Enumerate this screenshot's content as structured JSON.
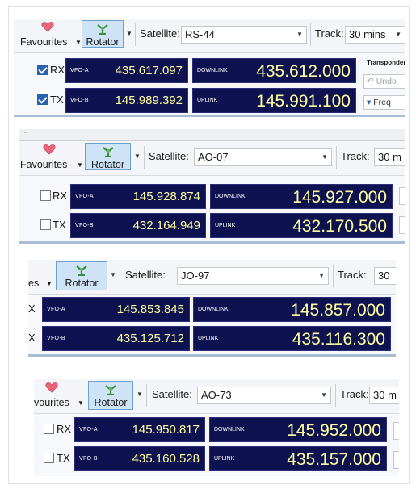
{
  "colors": {
    "display_bg": "#0f1250",
    "display_text": "#ffff9e",
    "rotator_bg": "#cfe3f7",
    "rail": "#a8bcd6"
  },
  "panels": [
    {
      "favourites_label": "Favourites",
      "rotator_label": "Rotator",
      "satellite_label": "Satellite:",
      "satellite_value": "RS-44",
      "track_label": "Track:",
      "track_value": "30 mins",
      "rx_label": "RX",
      "tx_label": "TX",
      "rx_checked": true,
      "tx_checked": true,
      "vfo_a_label": "VFO-A",
      "vfo_a_value": "435.617.097",
      "vfo_b_label": "VFO-B",
      "vfo_b_value": "145.989.392",
      "downlink_label": "DOWNLINK",
      "downlink_value": "435.612.000",
      "uplink_label": "UPLINK",
      "uplink_value": "145.991.100",
      "transponder_label": "Transponder",
      "undo_label": "Undo",
      "freq_label": "Freq"
    },
    {
      "tabs_text": "...",
      "favourites_label": "Favourites",
      "rotator_label": "Rotator",
      "satellite_label": "Satellite:",
      "satellite_value": "AO-07",
      "track_label": "Track:",
      "track_value": "30 m",
      "rx_label": "RX",
      "tx_label": "TX",
      "rx_checked": false,
      "tx_checked": false,
      "vfo_a_label": "VFO-A",
      "vfo_a_value": "145.928.874",
      "vfo_b_label": "VFO-B",
      "vfo_b_value": "432.164.949",
      "downlink_label": "DOWNLINK",
      "downlink_value": "145.927.000",
      "uplink_label": "UPLINK",
      "uplink_value": "432.170.500"
    },
    {
      "favourites_label": "es",
      "rotator_label": "Rotator",
      "satellite_label": "Satellite:",
      "satellite_value": "JO-97",
      "track_label": "Track:",
      "track_value": "30",
      "rx_label": "X",
      "tx_label": "X",
      "vfo_a_label": "VFO-A",
      "vfo_a_value": "145.853.845",
      "vfo_b_label": "VFO-B",
      "vfo_b_value": "435.125.712",
      "downlink_label": "DOWNLINK",
      "downlink_value": "145.857.000",
      "uplink_label": "UPLINK",
      "uplink_value": "435.116.300"
    },
    {
      "favourites_label": "vourites",
      "rotator_label": "Rotator",
      "satellite_label": "Satellite:",
      "satellite_value": "AO-73",
      "track_label": "Track:",
      "track_value": "30 m",
      "rx_label": "RX",
      "tx_label": "TX",
      "rx_checked": false,
      "tx_checked": false,
      "vfo_a_label": "VFO-A",
      "vfo_a_value": "145.950.817",
      "vfo_b_label": "VFO-B",
      "vfo_b_value": "435.160.528",
      "downlink_label": "DOWNLINK",
      "downlink_value": "145.952.000",
      "uplink_label": "UPLINK",
      "uplink_value": "435.157.000"
    }
  ]
}
